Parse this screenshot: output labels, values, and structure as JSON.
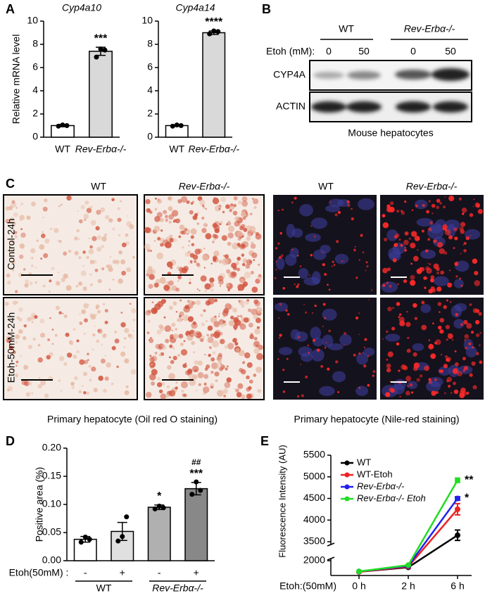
{
  "figure": {
    "panel_labels": [
      "A",
      "B",
      "C",
      "D",
      "E"
    ],
    "blot": {
      "groups": [
        "WT",
        "Rev-Erbα-/-"
      ],
      "treatment_label": "Etoh (mM):",
      "doses": [
        "0",
        "50",
        "0",
        "50"
      ],
      "rows": [
        "CYP4A",
        "ACTIN"
      ],
      "caption": "Mouse hepatocytes"
    },
    "staining": {
      "columns": [
        "WT",
        "Rev-Erbα-/-",
        "WT",
        "Rev-Erbα-/-"
      ],
      "rows": [
        "Control-24h",
        "Etoh-50mM-24h"
      ],
      "captions": [
        "Primary hepatocyte (Oil red O staining)",
        "Primary hepatocyte (Nile-red staining)"
      ]
    }
  },
  "chart_data": [
    {
      "type": "bar",
      "title": "Cyp4a10",
      "y_label": "Relative mRNA level",
      "categories": [
        "WT",
        "Rev-Erbα-/-"
      ],
      "values": [
        1.0,
        7.4
      ],
      "errors": [
        0.1,
        0.35
      ],
      "points": [
        [
          0.95,
          1.05,
          1.0
        ],
        [
          6.9,
          7.6,
          7.5
        ]
      ],
      "significance": [
        null,
        "***"
      ],
      "color": [
        "#ffffff",
        "#d9d9d9"
      ],
      "ylim": [
        0,
        10
      ],
      "yticks": [
        0,
        2,
        4,
        6,
        8,
        10
      ]
    },
    {
      "type": "bar",
      "title": "Cyp4a14",
      "categories": [
        "WT",
        "Rev-Erbα-/-"
      ],
      "values": [
        1.0,
        9.0
      ],
      "errors": [
        0.05,
        0.15
      ],
      "points": [
        [
          0.95,
          1.05,
          1.0
        ],
        [
          8.9,
          9.15,
          9.1
        ]
      ],
      "significance": [
        null,
        "****"
      ],
      "color": [
        "#ffffff",
        "#d9d9d9"
      ],
      "ylim": [
        0,
        10
      ],
      "yticks": [
        0,
        2,
        4,
        6,
        8,
        10
      ]
    },
    {
      "type": "bar",
      "y_label": "Positive area (%)",
      "x_row_label": "Etoh(50mM) :",
      "categories": [
        "-",
        "+",
        "-",
        "+"
      ],
      "groups": [
        "WT",
        "Rev-Erbα-/-"
      ],
      "values": [
        0.038,
        0.052,
        0.095,
        0.128
      ],
      "errors": [
        0.005,
        0.016,
        0.004,
        0.011
      ],
      "points": [
        [
          0.033,
          0.042,
          0.038
        ],
        [
          0.035,
          0.043,
          0.078
        ],
        [
          0.092,
          0.097,
          0.094
        ],
        [
          0.118,
          0.14,
          0.125
        ]
      ],
      "significance": [
        null,
        null,
        "*",
        "***"
      ],
      "significance_2": [
        null,
        null,
        null,
        "##"
      ],
      "color": [
        "#ffffff",
        "#e0e0e0",
        "#b0b0b0",
        "#888888"
      ],
      "ylim": [
        0,
        0.2
      ],
      "yticks": [
        {
          "value": 0,
          "label": "0.00"
        },
        0.05,
        {
          "value": 0.1,
          "label": "0.10"
        },
        0.15,
        {
          "value": 0.2,
          "label": "0.20"
        }
      ]
    },
    {
      "type": "line",
      "y_label": "Fluorescence Intensity (AU)",
      "x_row_label": "Etoh:(50mM)",
      "categories": [
        "0 h",
        "2 h",
        "6 h"
      ],
      "y_segments": [
        {
          "ylim": [
            0,
            2000
          ],
          "yticks": [
            2000
          ]
        },
        {
          "ylim": [
            3500,
            5500
          ],
          "yticks": [
            3500,
            4000,
            4500,
            5000,
            5500
          ]
        }
      ],
      "series": [
        {
          "name": "WT",
          "color": "#000000",
          "values": [
            500,
            1100,
            3650
          ],
          "errors": [
            60,
            60,
            120
          ]
        },
        {
          "name": "WT-Etoh",
          "color": "#ee2222",
          "values": [
            500,
            1200,
            4250
          ],
          "errors": [
            60,
            60,
            130
          ]
        },
        {
          "name": "Rev-Erbα-/-",
          "color": "#2222ee",
          "values": [
            550,
            1300,
            4500
          ],
          "errors": [
            60,
            60,
            40
          ],
          "significance": "*"
        },
        {
          "name": "Rev-Erbα-/- Etoh",
          "color": "#22dd22",
          "values": [
            550,
            1400,
            4920
          ],
          "errors": [
            60,
            60,
            50
          ],
          "significance": "**"
        }
      ]
    }
  ]
}
